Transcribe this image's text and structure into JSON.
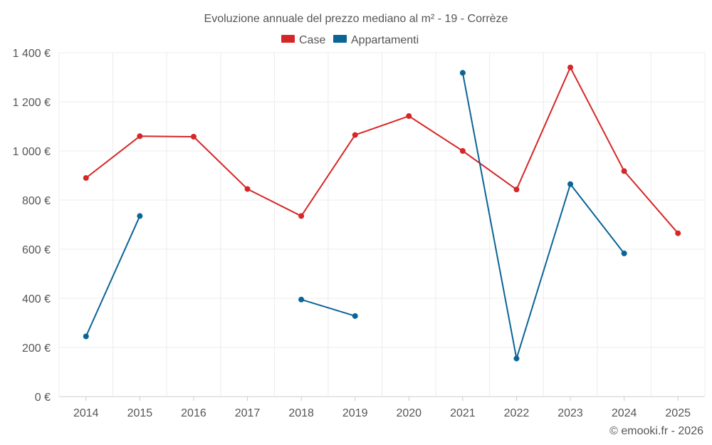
{
  "chart_data": {
    "type": "line",
    "title": "Evoluzione annuale del prezzo mediano al m² - 19 - Corrèze",
    "xlabel": "",
    "ylabel": "",
    "categories": [
      "2014",
      "2015",
      "2016",
      "2017",
      "2018",
      "2019",
      "2020",
      "2021",
      "2022",
      "2023",
      "2024",
      "2025"
    ],
    "ylim": [
      0,
      1400
    ],
    "yticks": [
      0,
      200,
      400,
      600,
      800,
      1000,
      1200,
      1400
    ],
    "ytick_labels": [
      "0 €",
      "200 €",
      "400 €",
      "600 €",
      "800 €",
      "1 000 €",
      "1 200 €",
      "1 400 €"
    ],
    "grid": true,
    "legend_position": "top-center",
    "series": [
      {
        "name": "Case",
        "color": "#d62728",
        "values": [
          890,
          1060,
          1058,
          845,
          735,
          1065,
          1142,
          1000,
          843,
          1340,
          918,
          665
        ]
      },
      {
        "name": "Appartamenti",
        "color": "#0a6496",
        "values": [
          245,
          735,
          null,
          null,
          395,
          328,
          null,
          1318,
          155,
          865,
          583,
          null
        ]
      }
    ]
  },
  "footer": {
    "copyright": "© emooki.fr - 2026"
  }
}
